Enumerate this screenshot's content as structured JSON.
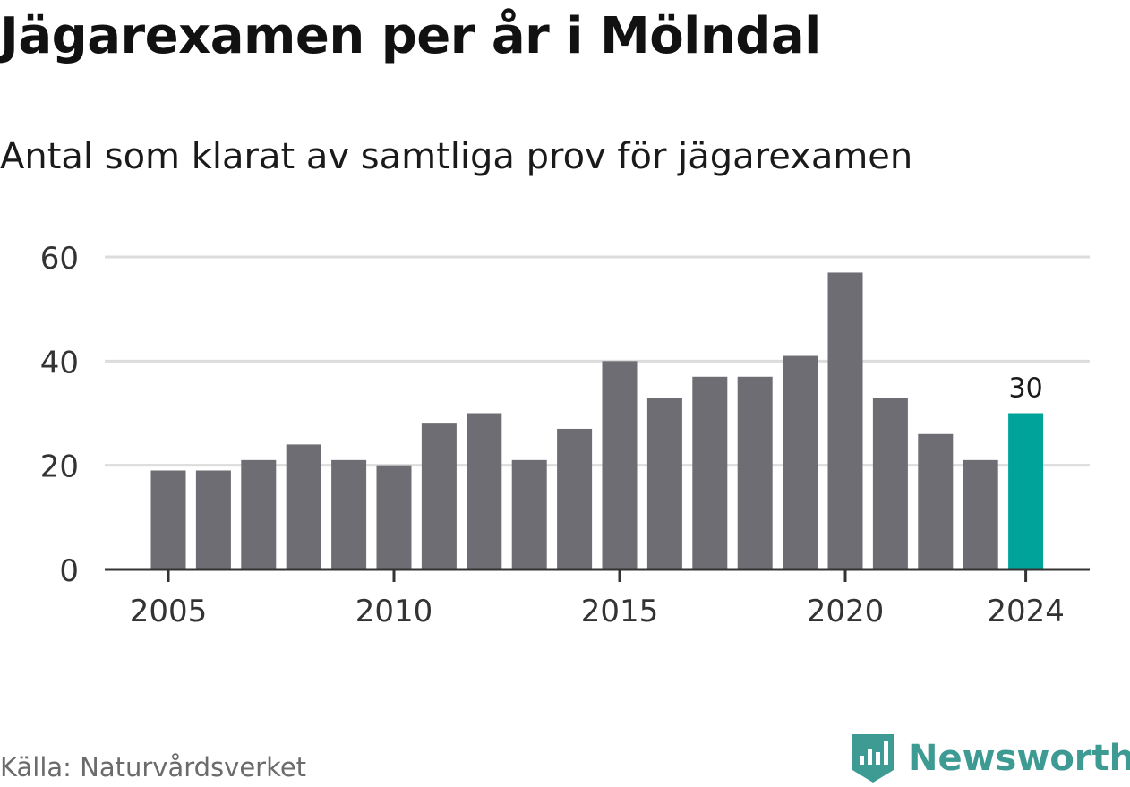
{
  "title": "Jägarexamen per år i Mölndal",
  "subtitle": "Antal som klarat av samtliga prov för jägarexamen",
  "source": "Källa: Naturvårdsverket",
  "brand": {
    "name": "Newsworthy",
    "icon": "newsworthy-logo-icon",
    "color": "#3d9b93"
  },
  "colors": {
    "bar": "#6e6d73",
    "highlight": "#00a39a",
    "grid": "#dcdcdc",
    "axis": "#333333"
  },
  "chart_data": {
    "type": "bar",
    "categories": [
      "2005",
      "2006",
      "2007",
      "2008",
      "2009",
      "2010",
      "2011",
      "2012",
      "2013",
      "2014",
      "2015",
      "2016",
      "2017",
      "2018",
      "2019",
      "2020",
      "2021",
      "2022",
      "2023",
      "2024"
    ],
    "values": [
      19,
      19,
      21,
      24,
      21,
      20,
      28,
      30,
      21,
      27,
      40,
      33,
      37,
      37,
      41,
      57,
      33,
      26,
      21,
      30
    ],
    "highlight_index": 19,
    "data_labels": [
      {
        "index": 19,
        "text": "30"
      }
    ],
    "x_tick_labels": [
      "2005",
      "2010",
      "2015",
      "2020",
      "2024"
    ],
    "y_ticks": [
      0,
      20,
      40,
      60
    ],
    "ylim": [
      0,
      60
    ],
    "grid": true,
    "xlabel": "",
    "ylabel": ""
  }
}
